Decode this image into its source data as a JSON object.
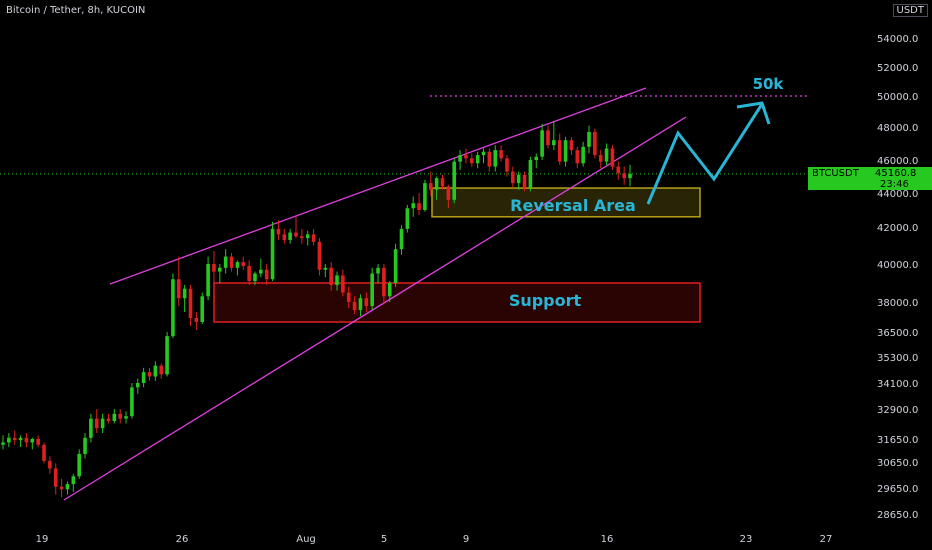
{
  "header": {
    "title": "Bitcoin / Tether, 8h, KUCOIN",
    "unit_badge": "USDT"
  },
  "ticker": {
    "symbol": "BTCUSDT",
    "price": "45160.8",
    "countdown": "23:46"
  },
  "colors": {
    "bull": "#26c91f",
    "bear": "#e02020",
    "trendline": "#e040e0",
    "projection": "#29b6d6",
    "support_border": "#e02020",
    "reversal_border": "#b5a21a",
    "text": "#d1d4dc"
  },
  "chart_data": {
    "type": "candlestick",
    "y_axis_ticks": [
      28650,
      29650,
      30650,
      31650,
      32900,
      34100,
      35300,
      36500,
      38000,
      40000,
      42000,
      44000,
      46000,
      48000,
      50000,
      52000,
      54000
    ],
    "x_axis_ticks": [
      "19",
      "26",
      "Aug",
      "5",
      "9",
      "16",
      "23",
      "27"
    ],
    "ohlc": [
      [
        31400,
        31800,
        31200,
        31500
      ],
      [
        31500,
        31900,
        31300,
        31700
      ],
      [
        31700,
        32000,
        31400,
        31600
      ],
      [
        31600,
        31800,
        31300,
        31700
      ],
      [
        31700,
        31900,
        31300,
        31500
      ],
      [
        31500,
        31700,
        31200,
        31650
      ],
      [
        31650,
        31800,
        31300,
        31400
      ],
      [
        31400,
        31500,
        30600,
        30700
      ],
      [
        30700,
        30900,
        30200,
        30400
      ],
      [
        30400,
        30600,
        29400,
        29700
      ],
      [
        29700,
        30000,
        29300,
        29600
      ],
      [
        29600,
        29900,
        29400,
        29800
      ],
      [
        29800,
        30200,
        29500,
        30100
      ],
      [
        30100,
        31200,
        30000,
        31000
      ],
      [
        31000,
        31900,
        30800,
        31700
      ],
      [
        31700,
        32700,
        31500,
        32500
      ],
      [
        32500,
        32900,
        31900,
        32100
      ],
      [
        32100,
        32700,
        31900,
        32500
      ],
      [
        32500,
        32700,
        32300,
        32400
      ],
      [
        32400,
        32900,
        32300,
        32700
      ],
      [
        32700,
        32900,
        32300,
        32500
      ],
      [
        32500,
        32800,
        32300,
        32600
      ],
      [
        32600,
        34100,
        32500,
        33900
      ],
      [
        33900,
        34300,
        33600,
        34100
      ],
      [
        34100,
        34800,
        33900,
        34600
      ],
      [
        34600,
        34800,
        34200,
        34400
      ],
      [
        34400,
        35100,
        34200,
        34900
      ],
      [
        34900,
        35000,
        34300,
        34500
      ],
      [
        34500,
        36500,
        34400,
        36300
      ],
      [
        36300,
        39500,
        36200,
        39200
      ],
      [
        39200,
        40400,
        37800,
        38200
      ],
      [
        38200,
        38900,
        37500,
        38700
      ],
      [
        38700,
        38900,
        36800,
        37200
      ],
      [
        37200,
        37500,
        36600,
        37000
      ],
      [
        37000,
        38500,
        36900,
        38300
      ],
      [
        38300,
        40400,
        38100,
        40000
      ],
      [
        40000,
        40700,
        39000,
        39600
      ],
      [
        39600,
        40000,
        39000,
        39800
      ],
      [
        39800,
        40800,
        39500,
        40400
      ],
      [
        40400,
        40600,
        39600,
        39800
      ],
      [
        39800,
        40200,
        39400,
        40100
      ],
      [
        40100,
        40400,
        39700,
        39900
      ],
      [
        39900,
        40200,
        38900,
        39100
      ],
      [
        39100,
        39600,
        38900,
        39500
      ],
      [
        39500,
        40300,
        39300,
        39700
      ],
      [
        39700,
        40000,
        38900,
        39200
      ],
      [
        39200,
        42300,
        39100,
        41900
      ],
      [
        41900,
        42400,
        41300,
        41600
      ],
      [
        41600,
        41900,
        41100,
        41300
      ],
      [
        41300,
        41900,
        41100,
        41700
      ],
      [
        41700,
        42600,
        41400,
        41500
      ],
      [
        41500,
        41900,
        41100,
        41400
      ],
      [
        41400,
        41800,
        41000,
        41600
      ],
      [
        41600,
        41900,
        41000,
        41200
      ],
      [
        41200,
        41400,
        39400,
        39700
      ],
      [
        39700,
        40000,
        39300,
        39800
      ],
      [
        39800,
        40100,
        38600,
        38900
      ],
      [
        38900,
        39600,
        38600,
        39400
      ],
      [
        39400,
        39700,
        38300,
        38500
      ],
      [
        38500,
        38800,
        37700,
        38000
      ],
      [
        38000,
        38300,
        37400,
        37600
      ],
      [
        37600,
        38400,
        37300,
        38200
      ],
      [
        38200,
        38500,
        37500,
        37800
      ],
      [
        37800,
        39800,
        37600,
        39500
      ],
      [
        39500,
        40000,
        39000,
        39800
      ],
      [
        39800,
        40000,
        37900,
        38300
      ],
      [
        38300,
        39100,
        38000,
        39000
      ],
      [
        39000,
        41100,
        38800,
        40800
      ],
      [
        40800,
        42100,
        40500,
        41900
      ],
      [
        41900,
        43300,
        41700,
        43100
      ],
      [
        43100,
        43800,
        42600,
        43400
      ],
      [
        43400,
        44000,
        42700,
        43000
      ],
      [
        43000,
        44800,
        42900,
        44600
      ],
      [
        44600,
        45300,
        43800,
        44200
      ],
      [
        44200,
        45000,
        43600,
        44900
      ],
      [
        44900,
        45100,
        44200,
        44400
      ],
      [
        44400,
        44500,
        43100,
        43600
      ],
      [
        43600,
        46100,
        43400,
        45900
      ],
      [
        45900,
        46600,
        45400,
        46300
      ],
      [
        46300,
        46700,
        45800,
        46100
      ],
      [
        46100,
        46400,
        45600,
        45800
      ],
      [
        45800,
        46500,
        45500,
        46300
      ],
      [
        46300,
        46700,
        45800,
        46500
      ],
      [
        46500,
        46700,
        45300,
        45600
      ],
      [
        45600,
        46900,
        45300,
        46600
      ],
      [
        46600,
        46900,
        45900,
        46100
      ],
      [
        46100,
        46300,
        45000,
        45300
      ],
      [
        45300,
        45600,
        44300,
        44600
      ],
      [
        44600,
        45300,
        44200,
        45100
      ],
      [
        45100,
        45300,
        44100,
        44300
      ],
      [
        44300,
        46200,
        44100,
        46000
      ],
      [
        46000,
        46400,
        45500,
        46200
      ],
      [
        46200,
        48200,
        46000,
        47800
      ],
      [
        47800,
        48100,
        46700,
        46900
      ],
      [
        46900,
        48400,
        46600,
        47200
      ],
      [
        47200,
        47600,
        45700,
        45900
      ],
      [
        45900,
        47400,
        45600,
        47200
      ],
      [
        47200,
        47400,
        46300,
        46600
      ],
      [
        46600,
        46800,
        45500,
        45800
      ],
      [
        45800,
        47100,
        45600,
        46800
      ],
      [
        46800,
        48100,
        46400,
        47700
      ],
      [
        47700,
        47900,
        46100,
        46300
      ],
      [
        46300,
        46600,
        45500,
        45900
      ],
      [
        45900,
        47000,
        45700,
        46700
      ],
      [
        46700,
        46900,
        45400,
        45600
      ],
      [
        45600,
        45900,
        44800,
        45200
      ],
      [
        45200,
        45600,
        44500,
        44900
      ],
      [
        44900,
        45700,
        44400,
        45160.8
      ]
    ],
    "annotations": {
      "reversal_label": "Reversal Area",
      "support_label": "Support",
      "target_label": "50k",
      "target_level": 50000,
      "support_zone": [
        37000,
        39000
      ],
      "reversal_zone": [
        42600,
        44300
      ]
    },
    "last_price": 45160.8
  }
}
